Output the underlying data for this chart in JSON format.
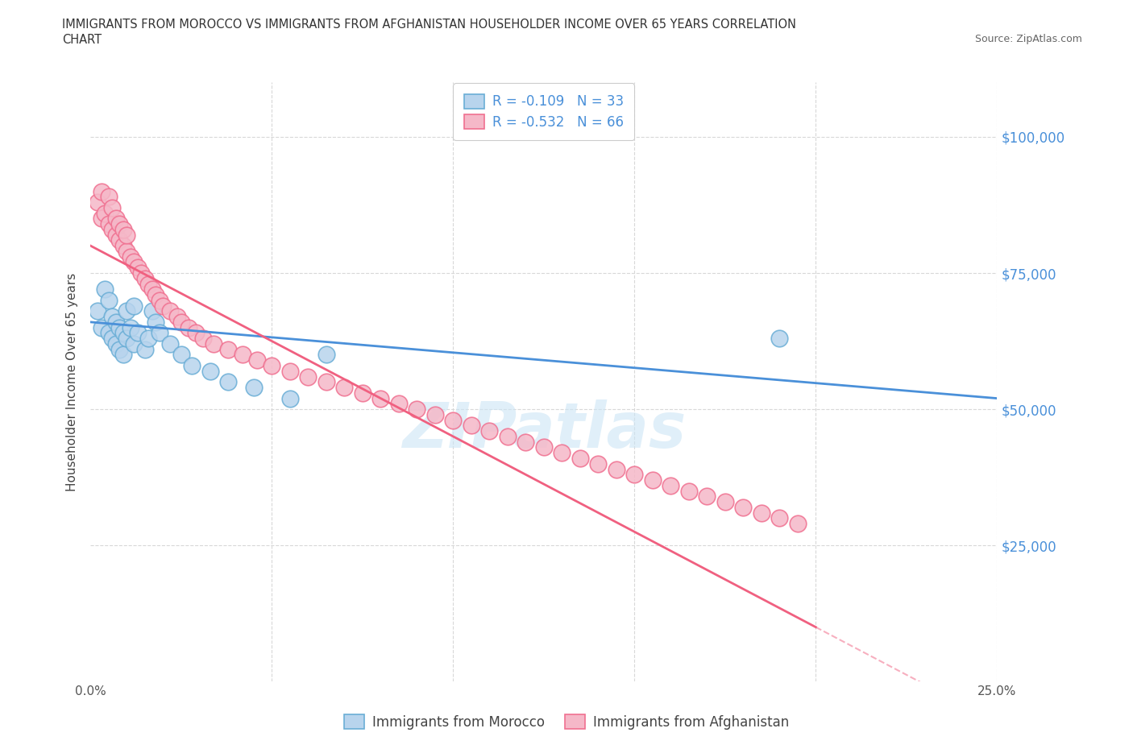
{
  "title_line1": "IMMIGRANTS FROM MOROCCO VS IMMIGRANTS FROM AFGHANISTAN HOUSEHOLDER INCOME OVER 65 YEARS CORRELATION",
  "title_line2": "CHART",
  "source": "Source: ZipAtlas.com",
  "ylabel": "Householder Income Over 65 years",
  "xlim": [
    0.0,
    0.25
  ],
  "ylim": [
    0,
    110000
  ],
  "yticks": [
    0,
    25000,
    50000,
    75000,
    100000
  ],
  "ytick_labels_right": [
    "",
    "$25,000",
    "$50,000",
    "$75,000",
    "$100,000"
  ],
  "xticks": [
    0.0,
    0.05,
    0.1,
    0.15,
    0.2,
    0.25
  ],
  "xtick_labels": [
    "0.0%",
    "",
    "",
    "",
    "",
    "25.0%"
  ],
  "morocco_R": -0.109,
  "morocco_N": 33,
  "afghanistan_R": -0.532,
  "afghanistan_N": 66,
  "morocco_fill_color": "#b8d4ed",
  "afghanistan_fill_color": "#f5b8c8",
  "morocco_edge_color": "#6aaed6",
  "afghanistan_edge_color": "#f07090",
  "morocco_line_color": "#4a90d9",
  "afghanistan_line_color": "#f06080",
  "watermark": "ZIPatlas",
  "background_color": "#ffffff",
  "grid_color": "#d8d8d8",
  "tick_label_color": "#4a90d9",
  "morocco_scatter_x": [
    0.002,
    0.003,
    0.004,
    0.005,
    0.005,
    0.006,
    0.006,
    0.007,
    0.007,
    0.008,
    0.008,
    0.009,
    0.009,
    0.01,
    0.01,
    0.011,
    0.012,
    0.012,
    0.013,
    0.015,
    0.016,
    0.017,
    0.018,
    0.019,
    0.022,
    0.025,
    0.028,
    0.033,
    0.038,
    0.045,
    0.055,
    0.065,
    0.19
  ],
  "morocco_scatter_y": [
    68000,
    65000,
    72000,
    64000,
    70000,
    63000,
    67000,
    62000,
    66000,
    61000,
    65000,
    60000,
    64000,
    63000,
    68000,
    65000,
    62000,
    69000,
    64000,
    61000,
    63000,
    68000,
    66000,
    64000,
    62000,
    60000,
    58000,
    57000,
    55000,
    54000,
    52000,
    60000,
    63000
  ],
  "afghanistan_scatter_x": [
    0.002,
    0.003,
    0.003,
    0.004,
    0.005,
    0.005,
    0.006,
    0.006,
    0.007,
    0.007,
    0.008,
    0.008,
    0.009,
    0.009,
    0.01,
    0.01,
    0.011,
    0.012,
    0.013,
    0.014,
    0.015,
    0.016,
    0.017,
    0.018,
    0.019,
    0.02,
    0.022,
    0.024,
    0.025,
    0.027,
    0.029,
    0.031,
    0.034,
    0.038,
    0.042,
    0.046,
    0.05,
    0.055,
    0.06,
    0.065,
    0.07,
    0.075,
    0.08,
    0.085,
    0.09,
    0.095,
    0.1,
    0.105,
    0.11,
    0.115,
    0.12,
    0.125,
    0.13,
    0.135,
    0.14,
    0.145,
    0.15,
    0.155,
    0.16,
    0.165,
    0.17,
    0.175,
    0.18,
    0.185,
    0.19,
    0.195
  ],
  "afghanistan_scatter_y": [
    88000,
    90000,
    85000,
    86000,
    84000,
    89000,
    83000,
    87000,
    82000,
    85000,
    81000,
    84000,
    80000,
    83000,
    79000,
    82000,
    78000,
    77000,
    76000,
    75000,
    74000,
    73000,
    72000,
    71000,
    70000,
    69000,
    68000,
    67000,
    66000,
    65000,
    64000,
    63000,
    62000,
    61000,
    60000,
    59000,
    58000,
    57000,
    56000,
    55000,
    54000,
    53000,
    52000,
    51000,
    50000,
    49000,
    48000,
    47000,
    46000,
    45000,
    44000,
    43000,
    42000,
    41000,
    40000,
    39000,
    38000,
    37000,
    36000,
    35000,
    34000,
    33000,
    32000,
    31000,
    30000,
    29000
  ],
  "morocco_trend_x0": 0.0,
  "morocco_trend_y0": 66000,
  "morocco_trend_x1": 0.25,
  "morocco_trend_y1": 52000,
  "afghanistan_trend_x0": 0.0,
  "afghanistan_trend_y0": 80000,
  "afghanistan_trend_x1": 0.2,
  "afghanistan_trend_y1": 10000
}
